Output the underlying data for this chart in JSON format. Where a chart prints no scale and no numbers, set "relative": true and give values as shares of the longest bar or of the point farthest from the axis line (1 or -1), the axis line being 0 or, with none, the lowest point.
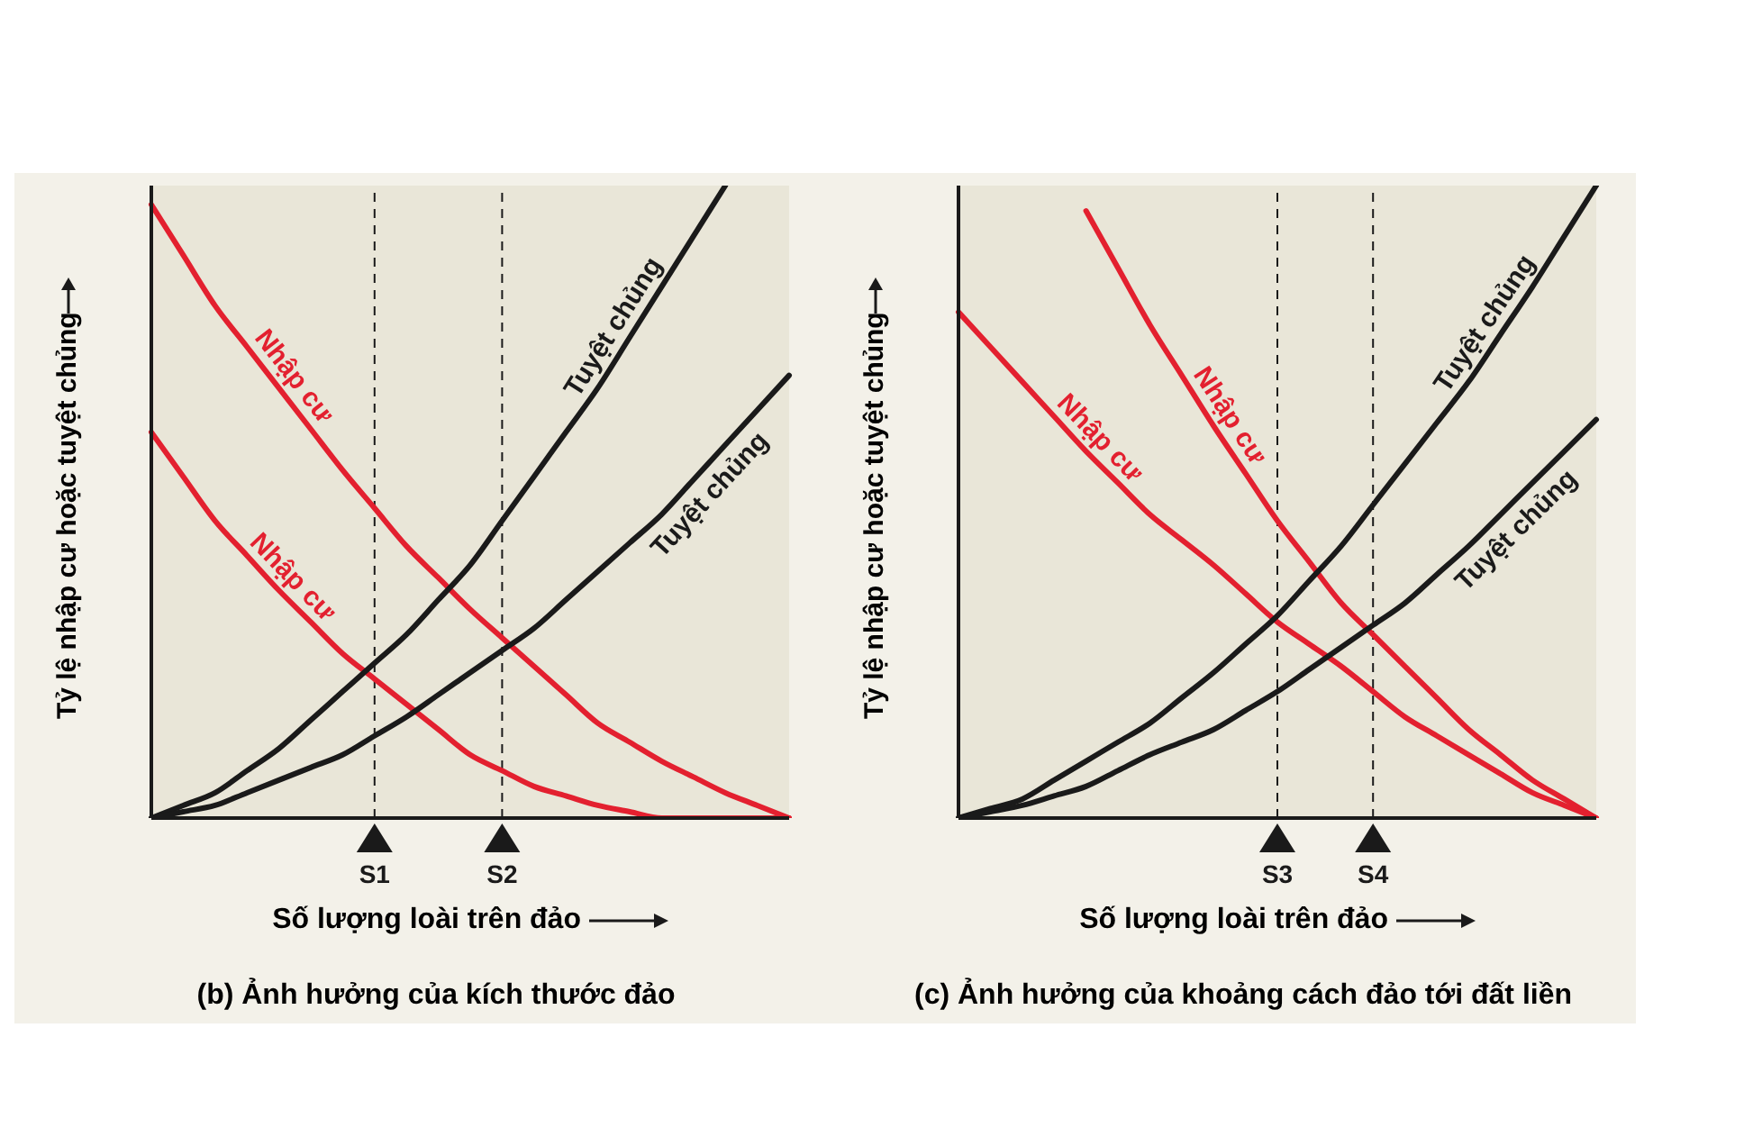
{
  "chart_data": [
    {
      "type": "line",
      "title": "(b) Ảnh hưởng của kích thước đảo",
      "xlabel": "Số lượng loài trên đảo",
      "ylabel": "Tỷ lệ nhập cư hoặc tuyệt chủng",
      "relative": true,
      "categories": [
        null,
        null,
        null,
        null,
        null,
        null,
        null,
        "S1",
        null,
        null,
        null,
        "S2",
        null,
        null,
        null,
        null,
        null,
        null,
        null,
        null,
        null
      ],
      "ref_lines": [
        {
          "axis": "x",
          "value": "S1",
          "line_style": "dashed",
          "color": "#1a1a1a"
        },
        {
          "axis": "x",
          "value": "S2",
          "line_style": "dashed",
          "color": "#1a1a1a"
        }
      ],
      "series": [
        {
          "name": "Nhập cư",
          "color": "#e3202f",
          "values": [
            0.97,
            0.89,
            0.81,
            0.745,
            0.68,
            0.615,
            0.55,
            0.49,
            0.43,
            0.38,
            0.33,
            0.285,
            0.24,
            0.195,
            0.15,
            0.12,
            0.09,
            0.065,
            0.04,
            0.02,
            0
          ]
        },
        {
          "name": "Nhập cư",
          "color": "#e3202f",
          "values": [
            0.61,
            0.54,
            0.47,
            0.415,
            0.36,
            0.31,
            0.26,
            0.22,
            0.18,
            0.14,
            0.1,
            0.075,
            0.05,
            0.035,
            0.02,
            0.01,
            0,
            0,
            0,
            0,
            0
          ]
        },
        {
          "name": "Tuyệt chủng",
          "color": "#1a1a1a",
          "values": [
            0,
            0.02,
            0.04,
            0.075,
            0.11,
            0.155,
            0.2,
            0.245,
            0.29,
            0.345,
            0.4,
            0.47,
            0.54,
            0.61,
            0.68,
            0.76,
            0.84,
            0.92,
            1.0,
            null,
            null
          ]
        },
        {
          "name": "Tuyệt chủng",
          "color": "#1a1a1a",
          "values": [
            0,
            0.01,
            0.02,
            0.04,
            0.06,
            0.08,
            0.1,
            0.13,
            0.16,
            0.195,
            0.23,
            0.265,
            0.3,
            0.345,
            0.39,
            0.435,
            0.48,
            0.535,
            0.59,
            0.645,
            0.7
          ]
        }
      ]
    },
    {
      "type": "line",
      "title": "(c) Ảnh hưởng của khoảng cách đảo tới đất liền",
      "xlabel": "Số lượng loài trên đảo",
      "ylabel": "Tỷ lệ nhập cư hoặc tuyệt chủng",
      "relative": true,
      "categories": [
        null,
        null,
        null,
        null,
        null,
        null,
        null,
        null,
        null,
        null,
        "S3",
        null,
        null,
        "S4",
        null,
        null,
        null,
        null,
        null,
        null,
        null
      ],
      "ref_lines": [
        {
          "axis": "x",
          "value": "S3",
          "line_style": "dashed",
          "color": "#1a1a1a"
        },
        {
          "axis": "x",
          "value": "S4",
          "line_style": "dashed",
          "color": "#1a1a1a"
        }
      ],
      "series": [
        {
          "name": "Nhập cư",
          "color": "#e3202f",
          "values": [
            null,
            null,
            null,
            null,
            0.96,
            0.87,
            0.78,
            0.7,
            0.62,
            0.545,
            0.47,
            0.405,
            0.34,
            0.29,
            0.24,
            0.19,
            0.14,
            0.1,
            0.06,
            0.03,
            0
          ]
        },
        {
          "name": "Nhập cư",
          "color": "#e3202f",
          "values": [
            0.8,
            0.745,
            0.69,
            0.635,
            0.58,
            0.53,
            0.48,
            0.44,
            0.4,
            0.355,
            0.31,
            0.275,
            0.24,
            0.2,
            0.16,
            0.13,
            0.1,
            0.07,
            0.04,
            0.02,
            0
          ]
        },
        {
          "name": "Tuyệt chủng",
          "color": "#1a1a1a",
          "values": [
            0,
            0.015,
            0.03,
            0.06,
            0.09,
            0.12,
            0.15,
            0.19,
            0.23,
            0.275,
            0.32,
            0.375,
            0.43,
            0.495,
            0.56,
            0.625,
            0.69,
            0.765,
            0.84,
            0.92,
            1.0
          ]
        },
        {
          "name": "Tuyệt chủng",
          "color": "#1a1a1a",
          "values": [
            0,
            0.01,
            0.02,
            0.035,
            0.05,
            0.075,
            0.1,
            0.12,
            0.14,
            0.17,
            0.2,
            0.235,
            0.27,
            0.305,
            0.34,
            0.385,
            0.43,
            0.48,
            0.53,
            0.58,
            0.63
          ]
        }
      ]
    }
  ]
}
